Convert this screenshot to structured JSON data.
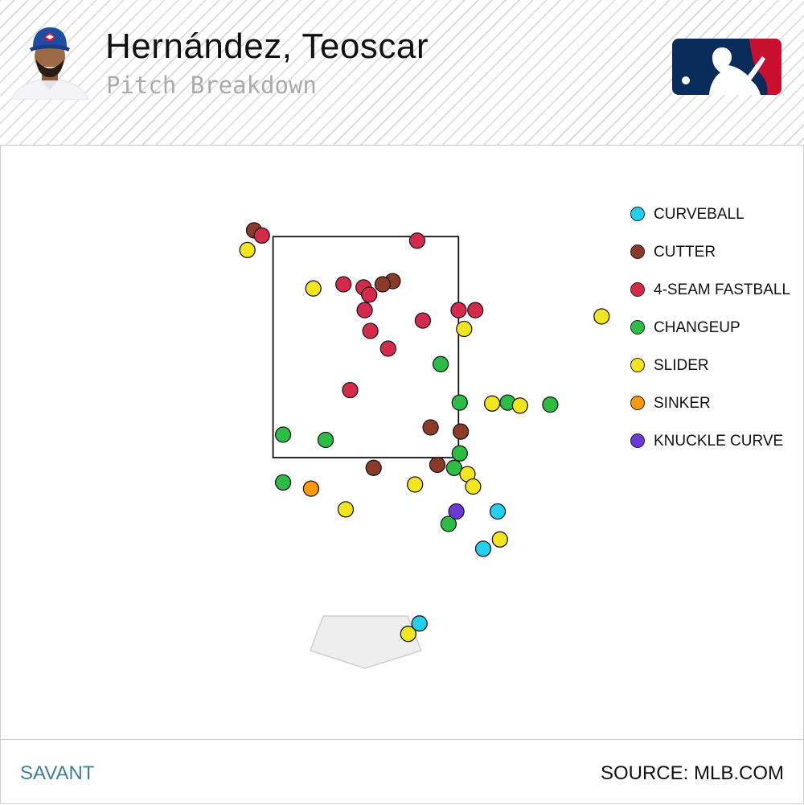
{
  "header": {
    "player_name": "Hernández, Teoscar",
    "subtitle": "Pitch Breakdown"
  },
  "icons": {
    "avatar": "player-headshot-blue-jays",
    "logo": "mlb-logo"
  },
  "colors": {
    "mlb_blue": "#0a2c5a",
    "mlb_red": "#c8102e",
    "footer_link": "#3d8191"
  },
  "chart_data": {
    "type": "scatter",
    "title": "",
    "xlabel": "",
    "ylabel": "",
    "xlim": [
      -2.5,
      2.5
    ],
    "ylim": [
      -0.5,
      5.0
    ],
    "grid": false,
    "legend_position": "top-right",
    "strike_zone": {
      "x": [
        -0.83,
        0.83
      ],
      "y": [
        1.52,
        3.65
      ]
    },
    "series": [
      {
        "name": "CURVEBALL",
        "color": "#22d0ee",
        "points": [
          [
            1.18,
            1.0
          ],
          [
            1.05,
            0.64
          ],
          [
            0.48,
            -0.08
          ]
        ]
      },
      {
        "name": "CUTTER",
        "color": "#8b3a2a",
        "points": [
          [
            -1.0,
            3.71
          ],
          [
            0.24,
            3.22
          ],
          [
            0.15,
            3.19
          ],
          [
            0.58,
            1.81
          ],
          [
            0.85,
            1.77
          ],
          [
            0.07,
            1.42
          ],
          [
            0.64,
            1.45
          ]
        ]
      },
      {
        "name": "4-SEAM FASTBALL",
        "color": "#d42a4c",
        "points": [
          [
            -0.93,
            3.66
          ],
          [
            0.46,
            3.61
          ],
          [
            -0.2,
            3.19
          ],
          [
            -0.02,
            3.16
          ],
          [
            0.03,
            3.09
          ],
          [
            -0.01,
            2.94
          ],
          [
            0.83,
            2.94
          ],
          [
            0.98,
            2.94
          ],
          [
            0.51,
            2.84
          ],
          [
            0.04,
            2.74
          ],
          [
            0.2,
            2.57
          ],
          [
            -0.14,
            2.17
          ]
        ]
      },
      {
        "name": "CHANGEUP",
        "color": "#2dbd44",
        "points": [
          [
            0.67,
            2.42
          ],
          [
            0.84,
            2.05
          ],
          [
            1.27,
            2.05
          ],
          [
            1.65,
            2.03
          ],
          [
            -0.74,
            1.74
          ],
          [
            -0.36,
            1.69
          ],
          [
            0.84,
            1.56
          ],
          [
            0.79,
            1.42
          ],
          [
            -0.74,
            1.28
          ],
          [
            0.74,
            0.88
          ]
        ]
      },
      {
        "name": "SLIDER",
        "color": "#f2e51e",
        "points": [
          [
            -1.06,
            3.52
          ],
          [
            -0.47,
            3.15
          ],
          [
            0.88,
            2.76
          ],
          [
            2.11,
            2.88
          ],
          [
            1.13,
            2.04
          ],
          [
            1.38,
            2.02
          ],
          [
            0.91,
            1.36
          ],
          [
            0.44,
            1.26
          ],
          [
            0.96,
            1.24
          ],
          [
            -0.18,
            1.02
          ],
          [
            1.2,
            0.73
          ],
          [
            0.38,
            -0.18
          ]
        ]
      },
      {
        "name": "SINKER",
        "color": "#fb9a0e",
        "points": [
          [
            -0.49,
            1.22
          ]
        ]
      },
      {
        "name": "KNUCKLE CURVE",
        "color": "#6a38d6",
        "points": [
          [
            0.81,
            1.0
          ]
        ]
      }
    ]
  },
  "footer": {
    "left_label": "SAVANT",
    "right_label": "SOURCE: MLB.COM"
  }
}
